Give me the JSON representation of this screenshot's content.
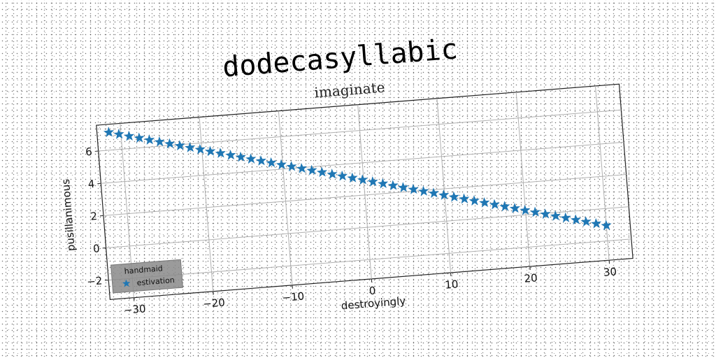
{
  "suptitle": "dodecasyllabic",
  "chart_data": {
    "type": "scatter",
    "title": "imaginate",
    "xlabel": "destroyingly",
    "ylabel": "pusillanimous",
    "xlim": [
      -33,
      33
    ],
    "ylim": [
      -3.2,
      7.6
    ],
    "xticks": [
      -30,
      -20,
      -10,
      0,
      10,
      20,
      30
    ],
    "yticks": [
      -2,
      0,
      2,
      4,
      6
    ],
    "grid": true,
    "legend": {
      "title": "handmaid",
      "location": "lower-left"
    },
    "marker": "star",
    "series": [
      {
        "name": "estivation",
        "color": "#1f77b4",
        "x_start": -31.5,
        "x_end": 30.0,
        "count": 50,
        "y_start": 7.1,
        "y_end": -1.05
      }
    ]
  }
}
